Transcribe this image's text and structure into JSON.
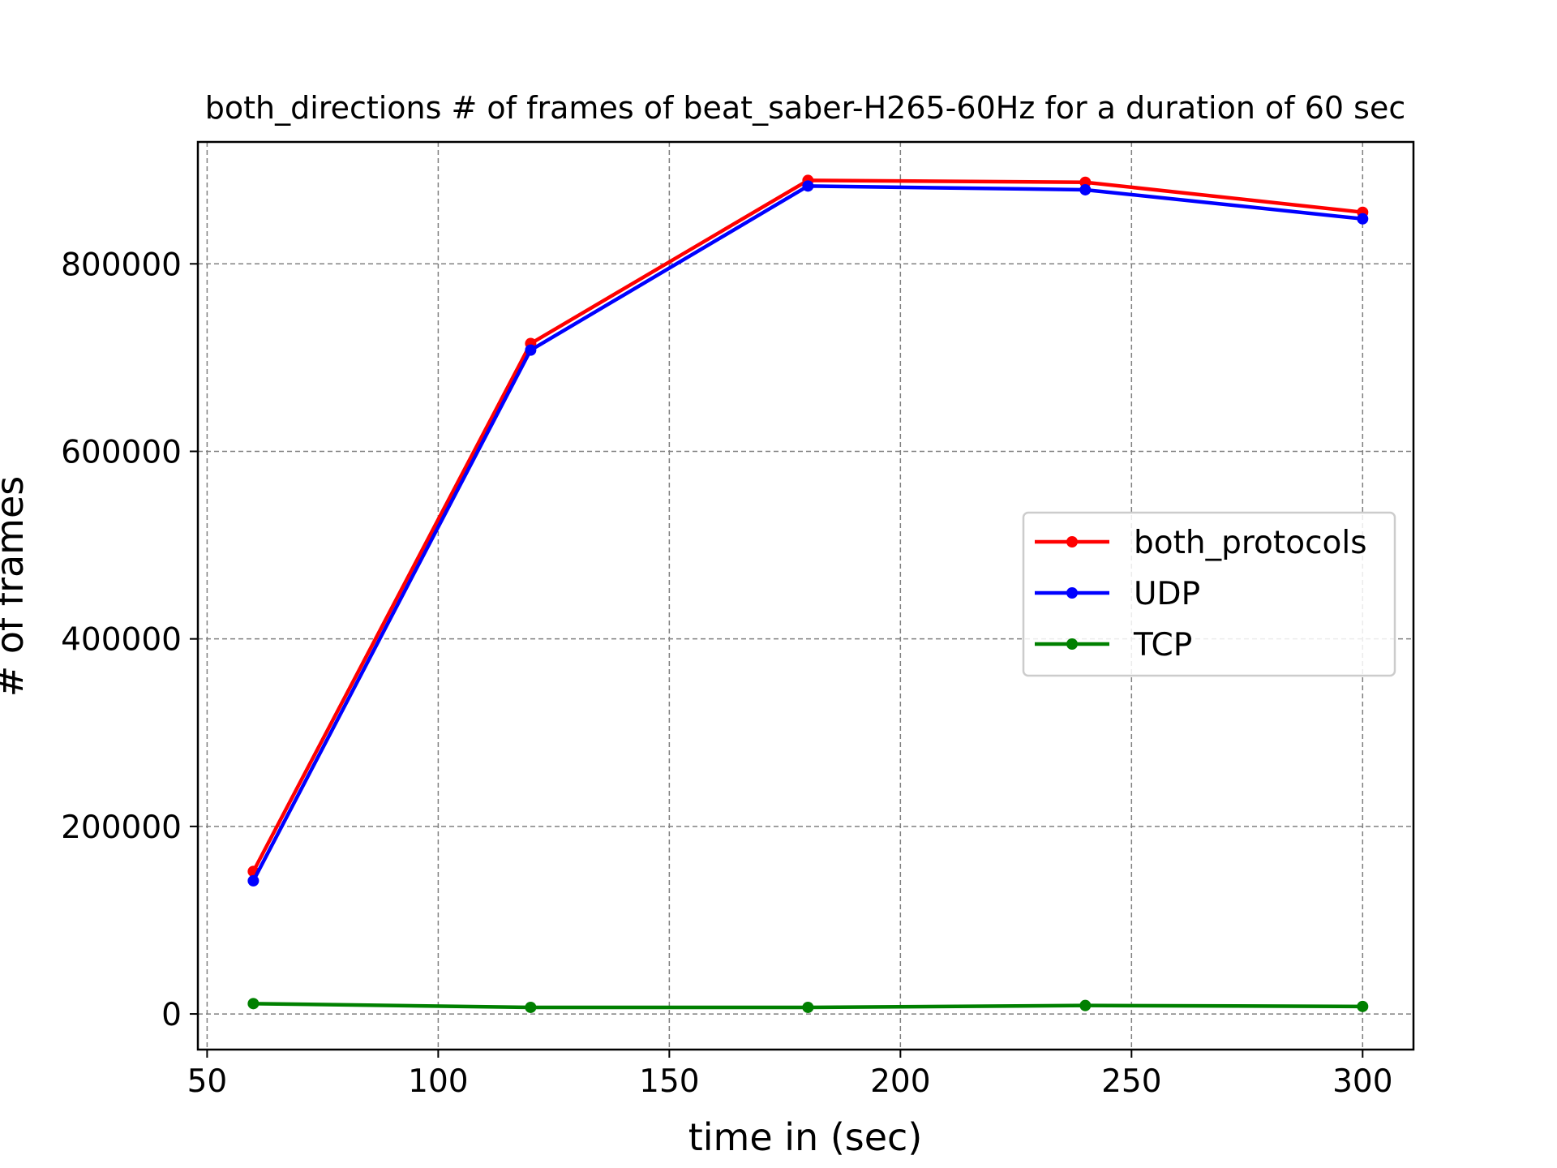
{
  "chart_data": {
    "type": "line",
    "title": "both_directions # of frames of beat_saber-H265-60Hz for a duration of 60 sec",
    "xlabel": "time in (sec)",
    "ylabel": "# of frames",
    "x": [
      60,
      120,
      180,
      240,
      300
    ],
    "xlim": [
      48,
      311
    ],
    "ylim": [
      -38000,
      930000
    ],
    "xticks": [
      50,
      100,
      150,
      200,
      250,
      300
    ],
    "yticks": [
      0,
      200000,
      400000,
      600000,
      800000
    ],
    "grid": true,
    "legend_position": "center-right",
    "series": [
      {
        "name": "both_protocols",
        "color": "#ff0000",
        "values": [
          152000,
          715000,
          889000,
          887000,
          855000
        ]
      },
      {
        "name": "UDP",
        "color": "#0000ff",
        "values": [
          142000,
          708000,
          883000,
          879000,
          848000
        ]
      },
      {
        "name": "TCP",
        "color": "#008000",
        "values": [
          11000,
          7000,
          7000,
          9000,
          8000
        ]
      }
    ]
  }
}
